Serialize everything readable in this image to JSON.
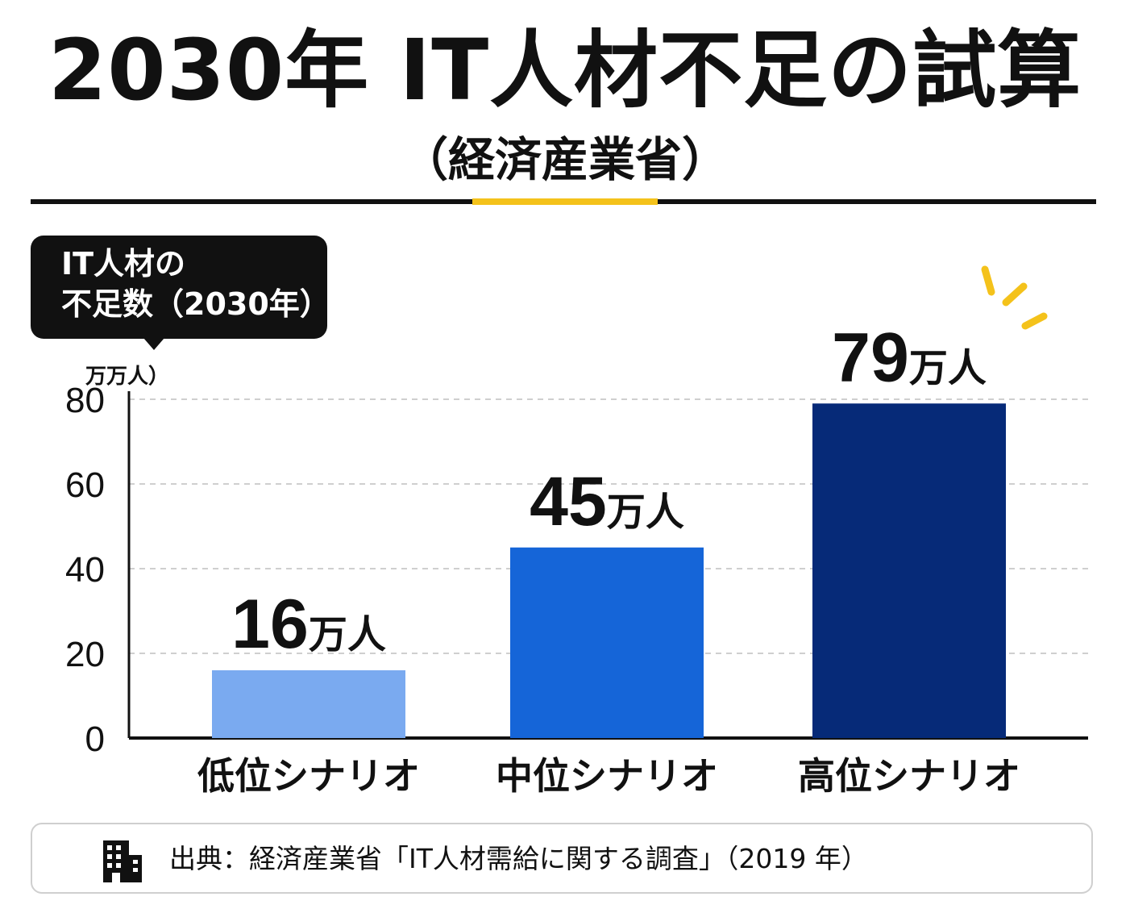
{
  "title": "2030年 IT人材不足の試算",
  "subtitle": "（経済産業省）",
  "callout": {
    "line1": "IT人材の",
    "line2": "不足数（2030年）"
  },
  "unit_label": "万万人）",
  "source": "出典：経済産業省「IT人材需給に関する調査」（2019 年）",
  "chart_data": {
    "type": "bar",
    "categories": [
      "低位シナリオ",
      "中位シナリオ",
      "高位シナリオ"
    ],
    "values": [
      16,
      45,
      79
    ],
    "data_label_numbers": [
      "16",
      "45",
      "79"
    ],
    "data_label_unit": "万人",
    "colors": [
      "#7aaaf0",
      "#1565d8",
      "#062a78"
    ],
    "yticks": [
      0,
      20,
      40,
      60,
      80
    ],
    "ylim": [
      0,
      80
    ],
    "grid": true
  }
}
